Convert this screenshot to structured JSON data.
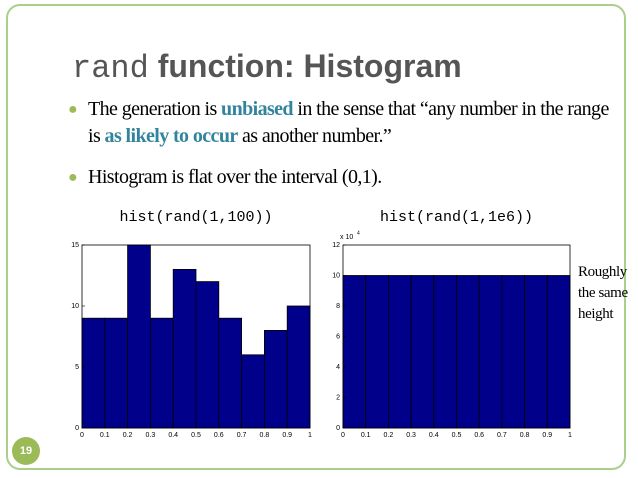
{
  "slide": {
    "title_code": "rand",
    "title_rest": "function: Histogram",
    "bullets": [
      [
        "The generation is ",
        "unbiased",
        " in the sense that “any number in the range is ",
        "as likely to occur",
        " as another number.”"
      ],
      [
        "Histogram is flat over the interval (0,1)."
      ]
    ],
    "side_note": "Roughly the same height",
    "page_number": "19"
  },
  "chart_data": [
    {
      "type": "histogram",
      "title": "hist(rand(1,100))",
      "bins": [
        0,
        0.1,
        0.2,
        0.3,
        0.4,
        0.5,
        0.6,
        0.7,
        0.8,
        0.9,
        1
      ],
      "counts": [
        9,
        9,
        15,
        9,
        13,
        12,
        9,
        6,
        8,
        10
      ],
      "color": "#00008b",
      "xlim": [
        0,
        1
      ],
      "xticks": [
        0,
        0.1,
        0.2,
        0.3,
        0.4,
        0.5,
        0.6,
        0.7,
        0.8,
        0.9,
        1
      ],
      "ylim": [
        0,
        15
      ],
      "yticks": [
        0,
        5,
        10,
        15
      ]
    },
    {
      "type": "histogram",
      "title": "hist(rand(1,1e6))",
      "bins": [
        0,
        0.1,
        0.2,
        0.3,
        0.4,
        0.5,
        0.6,
        0.7,
        0.8,
        0.9,
        1
      ],
      "counts": [
        100000,
        100000,
        100000,
        100000,
        100000,
        100000,
        100000,
        100000,
        100000,
        100000
      ],
      "color": "#00008b",
      "xlim": [
        0,
        1
      ],
      "xticks": [
        0,
        0.1,
        0.2,
        0.3,
        0.4,
        0.5,
        0.6,
        0.7,
        0.8,
        0.9,
        1
      ],
      "ylim": [
        0,
        120000
      ],
      "yticks": [
        {
          "value": 0,
          "label": "0"
        },
        {
          "value": 20000,
          "label": "2"
        },
        {
          "value": 40000,
          "label": "4"
        },
        {
          "value": 60000,
          "label": "6"
        },
        {
          "value": 80000,
          "label": "8"
        },
        {
          "value": 100000,
          "label": "10"
        },
        {
          "value": 120000,
          "label": "12"
        }
      ],
      "y_multiplier": {
        "base": "x 10",
        "exponent": "4"
      }
    }
  ]
}
